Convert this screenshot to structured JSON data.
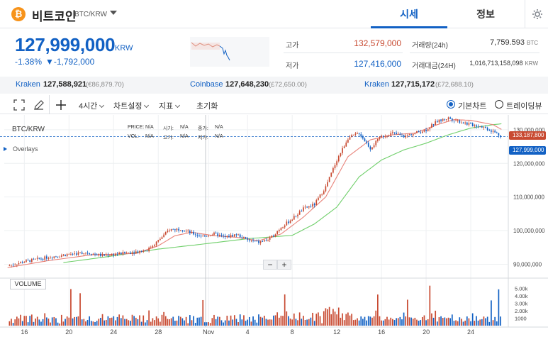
{
  "header": {
    "coin_symbol": "₿",
    "coin_name": "비트코인",
    "pair": "BTC/KRW",
    "tab_market": "시세",
    "tab_info": "정보"
  },
  "price": {
    "current": "127,999,000",
    "unit": "KRW",
    "change_pct": "-1.38%",
    "change_abs": "▼-1,792,000"
  },
  "stats": {
    "high_label": "고가",
    "high_value": "132,579,000",
    "low_label": "저가",
    "low_value": "127,416,000",
    "volume_label": "거래량(24h)",
    "volume_value": "7,759.593",
    "volume_unit": "BTC",
    "turnover_label": "거래대금(24H)",
    "turnover_value": "1,016,713,158,098",
    "turnover_unit": "KRW"
  },
  "exchanges": [
    {
      "name": "Kraken",
      "price": "127,588,921",
      "ref": "(€86,879.70)"
    },
    {
      "name": "Coinbase",
      "price": "127,648,230",
      "ref": "(£72,650.00)"
    },
    {
      "name": "Kraken",
      "price": "127,715,172",
      "ref": "(£72,688.10)"
    }
  ],
  "toolbar": {
    "interval": "4시간",
    "chart_settings": "차트설정",
    "indicators": "지표",
    "reset": "초기화",
    "basic_chart": "기본차트",
    "tradingview": "트레이딩뷰"
  },
  "colors": {
    "accent": "#1261c4",
    "up": "#c84a31",
    "down": "#1261c4",
    "ma_short": "#e8837a",
    "ma_long": "#6fcf6a",
    "bitcoin": "#f7931a"
  },
  "chart_labels": {
    "pair": "BTC/KRW",
    "overlays": "Overlays",
    "price_label": "PRICE:",
    "price_val": "N/A",
    "open_label": "시가:",
    "open_val": "N/A",
    "close_label": "종가:",
    "close_val": "N/A",
    "vol_label": "VOL:",
    "vol_val": "N/A",
    "high_label": "고가:",
    "high_val": "N/A",
    "low_label": "저가:",
    "low_val": "N/A",
    "volume_pane": "VOLUME",
    "zoom_out": "−",
    "zoom_in": "+",
    "tag_high": "133,187,800",
    "tag_current": "127,999,000"
  },
  "chart_data": {
    "type": "candlestick",
    "y_ticks": [
      "130,000,000",
      "120,000,000",
      "110,000,000",
      "100,000,000",
      "90,000,000"
    ],
    "y_tick_values": [
      130000000,
      120000000,
      110000000,
      100000000,
      90000000
    ],
    "ylim": [
      86300000,
      134400000
    ],
    "x_ticks": [
      "16",
      "20",
      "24",
      "28",
      "Nov",
      "4",
      "8",
      "12",
      "16",
      "20",
      "24"
    ],
    "x_tick_days": [
      0,
      4,
      8,
      12,
      16.5,
      20,
      24,
      28,
      32,
      36,
      40
    ],
    "day_range": [
      -1.8,
      43.3
    ],
    "volume_ticks": [
      "5.00k",
      "4.00k",
      "3.00k",
      "2.00k",
      "1000"
    ],
    "volume_tick_values": [
      5000,
      4000,
      3000,
      2000,
      1000
    ],
    "volume_max": 5800,
    "close_anchors": [
      [
        -1.5,
        89500000
      ],
      [
        0,
        90800000
      ],
      [
        2,
        92000000
      ],
      [
        4,
        93000000
      ],
      [
        5.5,
        93500000
      ],
      [
        7,
        92600000
      ],
      [
        9,
        93300000
      ],
      [
        11,
        94200000
      ],
      [
        12,
        97000000
      ],
      [
        13,
        100300000
      ],
      [
        14,
        100500000
      ],
      [
        15,
        99200000
      ],
      [
        16,
        98300000
      ],
      [
        17,
        99000000
      ],
      [
        18,
        98000000
      ],
      [
        19,
        98900000
      ],
      [
        20,
        97200000
      ],
      [
        21,
        96500000
      ],
      [
        22,
        97500000
      ],
      [
        23,
        101000000
      ],
      [
        24,
        103500000
      ],
      [
        25,
        106500000
      ],
      [
        26,
        107800000
      ],
      [
        27,
        113000000
      ],
      [
        28,
        121000000
      ],
      [
        29,
        127500000
      ],
      [
        30,
        129000000
      ],
      [
        31,
        124500000
      ],
      [
        32,
        128000000
      ],
      [
        33,
        129000000
      ],
      [
        34,
        128000000
      ],
      [
        35,
        129000000
      ],
      [
        36,
        130000000
      ],
      [
        37,
        132500000
      ],
      [
        38,
        133500000
      ],
      [
        39,
        132500000
      ],
      [
        40,
        131500000
      ],
      [
        41,
        131000000
      ],
      [
        42,
        129500000
      ],
      [
        42.8,
        127999000
      ]
    ],
    "ma_short_anchors": [
      [
        -1.5,
        89000000
      ],
      [
        2,
        91000000
      ],
      [
        6,
        92800000
      ],
      [
        10,
        93200000
      ],
      [
        12,
        95500000
      ],
      [
        13.5,
        98500000
      ],
      [
        15,
        99500000
      ],
      [
        17,
        98500000
      ],
      [
        19,
        98000000
      ],
      [
        21,
        97000000
      ],
      [
        23,
        99000000
      ],
      [
        25,
        104000000
      ],
      [
        27,
        110000000
      ],
      [
        28,
        116000000
      ],
      [
        29,
        122000000
      ],
      [
        31,
        127000000
      ],
      [
        33,
        128500000
      ],
      [
        35,
        129000000
      ],
      [
        37,
        131500000
      ],
      [
        38.5,
        133000000
      ],
      [
        40,
        132800000
      ],
      [
        42,
        131500000
      ],
      [
        42.8,
        130000000
      ]
    ],
    "ma_long_anchors": [
      [
        3.5,
        90500000
      ],
      [
        8,
        92500000
      ],
      [
        12,
        94500000
      ],
      [
        16,
        96000000
      ],
      [
        20,
        97600000
      ],
      [
        24,
        98600000
      ],
      [
        26,
        102000000
      ],
      [
        28,
        107000000
      ],
      [
        30,
        116000000
      ],
      [
        32,
        121000000
      ],
      [
        34,
        124000000
      ],
      [
        36,
        126000000
      ],
      [
        38,
        128500000
      ],
      [
        40,
        130500000
      ],
      [
        42,
        131500000
      ],
      [
        42.8,
        131800000
      ]
    ]
  }
}
